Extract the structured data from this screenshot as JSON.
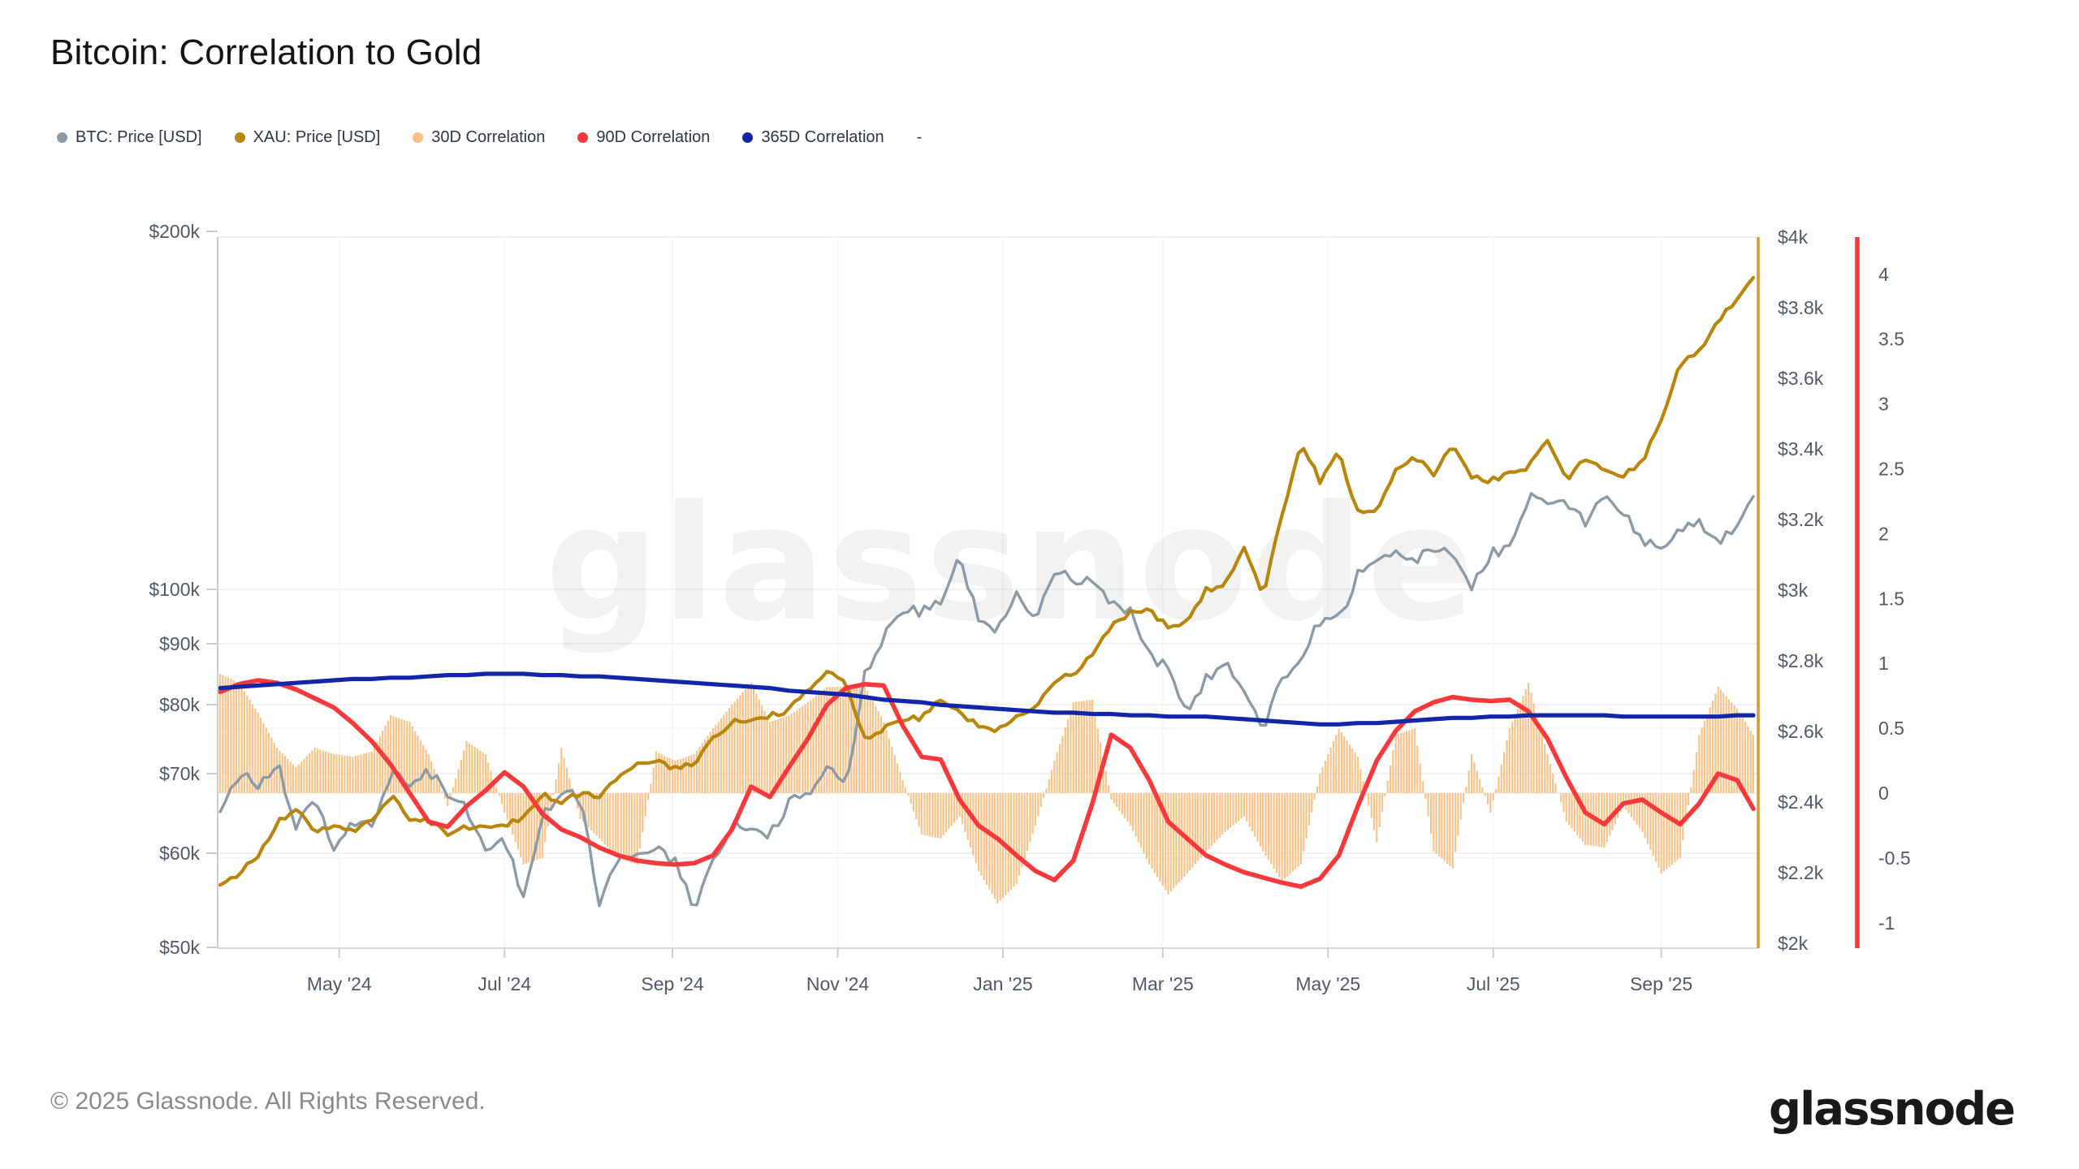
{
  "page": {
    "title": "Bitcoin: Correlation to Gold",
    "watermark": "glassnode",
    "footer": {
      "copyright": "© 2025 Glassnode. All Rights Reserved.",
      "brand": "glassnode"
    }
  },
  "legend": {
    "items": [
      {
        "label": "BTC: Price [USD]",
        "color": "#8A9AA7"
      },
      {
        "label": "XAU: Price [USD]",
        "color": "#B8860B"
      },
      {
        "label": "30D Correlation",
        "color": "#F9C083"
      },
      {
        "label": "90D Correlation",
        "color": "#F8393B"
      },
      {
        "label": "365D Correlation",
        "color": "#1226AA"
      }
    ],
    "overflow_label": "-"
  },
  "chart_data": {
    "type": "mixed",
    "title": "Bitcoin: Correlation to Gold",
    "grid": "horizontal-light",
    "legend_position": "top-left",
    "x_axis": {
      "start": "2024-03-18",
      "end": "2025-10-05",
      "tick_labels": [
        "May '24",
        "Jul '24",
        "Sep '24",
        "Nov '24",
        "Jan '25",
        "Mar '25",
        "May '25",
        "Jul '25",
        "Sep '25"
      ],
      "tick_dates": [
        "2024-05-01",
        "2024-07-01",
        "2024-09-01",
        "2024-11-01",
        "2025-01-01",
        "2025-03-01",
        "2025-05-01",
        "2025-07-01",
        "2025-09-01"
      ]
    },
    "axes": {
      "left_price": {
        "title": "BTC: Price [USD]",
        "scale": "log",
        "tick_labels": [
          "$200k",
          "$100k",
          "$90k",
          "$80k",
          "$70k",
          "$60k",
          "$50k"
        ],
        "tick_values_usd_k": [
          200,
          100,
          90,
          80,
          70,
          60,
          50
        ]
      },
      "right_price": {
        "title": "XAU: Price [USD]",
        "scale": "linear",
        "range_usd": [
          2000,
          4000
        ],
        "tick_labels": [
          "$4k",
          "$3.8k",
          "$3.6k",
          "$3.4k",
          "$3.2k",
          "$3k",
          "$2.8k",
          "$2.6k",
          "$2.4k",
          "$2.2k",
          "$2k"
        ],
        "tick_values_usd": [
          4000,
          3800,
          3600,
          3400,
          3200,
          3000,
          2800,
          2600,
          2400,
          2200,
          2000
        ],
        "axis_line_color": "#D9992E"
      },
      "right_correlation": {
        "title": "Correlation",
        "scale": "linear",
        "range": [
          -1.19,
          4.29
        ],
        "tick_labels": [
          "4",
          "3.5",
          "3",
          "2.5",
          "2",
          "1.5",
          "1",
          "0.5",
          "0",
          "-0.5",
          "-1"
        ],
        "tick_values": [
          4,
          3.5,
          3,
          2.5,
          2,
          1.5,
          1,
          0.5,
          0,
          -0.5,
          -1
        ],
        "axis_line_color": "#F8393B"
      }
    },
    "dates": [
      "2024-03-18",
      "2024-03-25",
      "2024-04-01",
      "2024-04-08",
      "2024-04-15",
      "2024-04-22",
      "2024-04-29",
      "2024-05-06",
      "2024-05-13",
      "2024-05-20",
      "2024-05-27",
      "2024-06-03",
      "2024-06-10",
      "2024-06-17",
      "2024-06-24",
      "2024-07-01",
      "2024-07-08",
      "2024-07-15",
      "2024-07-22",
      "2024-07-29",
      "2024-08-05",
      "2024-08-12",
      "2024-08-19",
      "2024-08-26",
      "2024-09-02",
      "2024-09-09",
      "2024-09-16",
      "2024-09-23",
      "2024-09-30",
      "2024-10-07",
      "2024-10-14",
      "2024-10-21",
      "2024-10-28",
      "2024-11-04",
      "2024-11-11",
      "2024-11-18",
      "2024-11-25",
      "2024-12-02",
      "2024-12-09",
      "2024-12-16",
      "2024-12-23",
      "2024-12-30",
      "2025-01-06",
      "2025-01-13",
      "2025-01-20",
      "2025-01-27",
      "2025-02-03",
      "2025-02-10",
      "2025-02-17",
      "2025-02-24",
      "2025-03-03",
      "2025-03-10",
      "2025-03-17",
      "2025-03-24",
      "2025-03-31",
      "2025-04-07",
      "2025-04-14",
      "2025-04-21",
      "2025-04-28",
      "2025-05-05",
      "2025-05-12",
      "2025-05-19",
      "2025-05-26",
      "2025-06-02",
      "2025-06-09",
      "2025-06-16",
      "2025-06-23",
      "2025-06-30",
      "2025-07-07",
      "2025-07-14",
      "2025-07-21",
      "2025-07-28",
      "2025-08-04",
      "2025-08-11",
      "2025-08-18",
      "2025-08-25",
      "2025-09-01",
      "2025-09-08",
      "2025-09-15",
      "2025-09-22",
      "2025-09-29",
      "2025-10-05"
    ],
    "series": [
      {
        "name": "BTC: Price [USD]",
        "type": "line",
        "axis": "left_price",
        "color": "#8A9AA7",
        "unit": "USD thousands",
        "values": [
          65.0,
          69.9,
          68.5,
          71.6,
          63.4,
          66.8,
          60.5,
          64.0,
          62.9,
          70.2,
          68.4,
          70.5,
          67.3,
          65.5,
          60.3,
          61.5,
          55.2,
          64.8,
          67.6,
          66.8,
          54.0,
          59.4,
          59.5,
          60.5,
          59.0,
          54.0,
          59.0,
          63.3,
          63.2,
          62.2,
          66.1,
          67.4,
          71.5,
          68.0,
          85.0,
          91.5,
          95.5,
          96.0,
          97.4,
          106.1,
          94.3,
          92.6,
          99.0,
          94.5,
          104.0,
          102.1,
          101.3,
          97.4,
          95.7,
          88.0,
          86.0,
          78.5,
          84.0,
          87.5,
          82.5,
          76.3,
          84.5,
          87.5,
          94.2,
          94.2,
          102.8,
          106.8,
          107.5,
          105.9,
          108.5,
          106.8,
          100.2,
          107.2,
          108.2,
          119.8,
          117.4,
          118.0,
          114.1,
          121.0,
          116.2,
          110.1,
          107.3,
          112.0,
          114.5,
          109.0,
          114.0,
          119.7
        ]
      },
      {
        "name": "XAU: Price [USD]",
        "type": "line",
        "axis": "right_price",
        "color": "#B8860B",
        "unit": "USD",
        "values": [
          2165,
          2195,
          2250,
          2340,
          2385,
          2315,
          2335,
          2320,
          2345,
          2420,
          2350,
          2350,
          2310,
          2330,
          2330,
          2330,
          2360,
          2425,
          2400,
          2425,
          2410,
          2470,
          2505,
          2515,
          2495,
          2510,
          2580,
          2625,
          2635,
          2645,
          2660,
          2720,
          2775,
          2735,
          2580,
          2610,
          2630,
          2640,
          2690,
          2650,
          2615,
          2605,
          2640,
          2670,
          2745,
          2765,
          2815,
          2900,
          2935,
          2945,
          2895,
          2910,
          3000,
          3020,
          3125,
          2985,
          3215,
          3420,
          3310,
          3390,
          3220,
          3230,
          3340,
          3380,
          3330,
          3410,
          3320,
          3310,
          3330,
          3350,
          3420,
          3310,
          3375,
          3345,
          3325,
          3365,
          3475,
          3640,
          3680,
          3760,
          3830,
          3885
        ]
      },
      {
        "name": "30D Correlation",
        "type": "bar",
        "axis": "right_correlation",
        "color": "#F9C083",
        "values": [
          0.92,
          0.85,
          0.62,
          0.35,
          0.2,
          0.35,
          0.3,
          0.28,
          0.32,
          0.6,
          0.55,
          0.3,
          -0.1,
          0.4,
          0.3,
          -0.15,
          -0.55,
          -0.5,
          0.35,
          -0.2,
          -0.35,
          -0.5,
          -0.55,
          0.32,
          0.25,
          0.3,
          0.5,
          0.68,
          0.85,
          0.55,
          0.6,
          0.7,
          0.82,
          0.82,
          0.83,
          0.55,
          0.1,
          -0.32,
          -0.35,
          -0.18,
          -0.6,
          -0.85,
          -0.7,
          -0.25,
          0.25,
          0.7,
          0.72,
          -0.05,
          -0.25,
          -0.55,
          -0.78,
          -0.62,
          -0.45,
          -0.3,
          -0.18,
          -0.45,
          -0.68,
          -0.55,
          0.15,
          0.5,
          0.28,
          -0.38,
          0.45,
          0.5,
          -0.45,
          -0.58,
          0.3,
          -0.15,
          0.5,
          0.85,
          0.3,
          -0.22,
          -0.4,
          -0.42,
          -0.1,
          -0.3,
          -0.62,
          -0.5,
          0.45,
          0.82,
          0.65,
          0.45
        ]
      },
      {
        "name": "90D Correlation",
        "type": "line",
        "axis": "right_correlation",
        "color": "#F8393B",
        "values": [
          0.78,
          0.84,
          0.87,
          0.85,
          0.8,
          0.73,
          0.66,
          0.54,
          0.4,
          0.22,
          0.0,
          -0.22,
          -0.26,
          -0.1,
          0.02,
          0.16,
          0.05,
          -0.16,
          -0.28,
          -0.34,
          -0.42,
          -0.48,
          -0.52,
          -0.54,
          -0.55,
          -0.54,
          -0.48,
          -0.28,
          0.05,
          -0.03,
          0.2,
          0.42,
          0.68,
          0.81,
          0.84,
          0.83,
          0.52,
          0.28,
          0.26,
          -0.05,
          -0.25,
          -0.35,
          -0.48,
          -0.6,
          -0.67,
          -0.52,
          -0.08,
          0.45,
          0.35,
          0.1,
          -0.22,
          -0.35,
          -0.48,
          -0.55,
          -0.61,
          -0.65,
          -0.69,
          -0.72,
          -0.66,
          -0.48,
          -0.1,
          0.25,
          0.48,
          0.63,
          0.7,
          0.74,
          0.72,
          0.71,
          0.72,
          0.63,
          0.42,
          0.12,
          -0.15,
          -0.24,
          -0.08,
          -0.05,
          -0.15,
          -0.24,
          -0.08,
          0.15,
          0.1,
          -0.12
        ]
      },
      {
        "name": "365D Correlation",
        "type": "line",
        "axis": "right_correlation",
        "color": "#1226AA",
        "values": [
          0.81,
          0.82,
          0.83,
          0.84,
          0.85,
          0.86,
          0.87,
          0.88,
          0.88,
          0.89,
          0.89,
          0.9,
          0.91,
          0.91,
          0.92,
          0.92,
          0.92,
          0.91,
          0.91,
          0.9,
          0.9,
          0.89,
          0.88,
          0.87,
          0.86,
          0.85,
          0.84,
          0.83,
          0.82,
          0.81,
          0.79,
          0.78,
          0.77,
          0.76,
          0.74,
          0.72,
          0.71,
          0.7,
          0.68,
          0.67,
          0.66,
          0.65,
          0.64,
          0.63,
          0.62,
          0.62,
          0.61,
          0.61,
          0.6,
          0.6,
          0.59,
          0.59,
          0.59,
          0.58,
          0.57,
          0.56,
          0.55,
          0.54,
          0.53,
          0.53,
          0.54,
          0.54,
          0.55,
          0.56,
          0.57,
          0.58,
          0.58,
          0.59,
          0.59,
          0.6,
          0.6,
          0.6,
          0.6,
          0.6,
          0.59,
          0.59,
          0.59,
          0.59,
          0.59,
          0.59,
          0.6,
          0.6
        ]
      }
    ]
  }
}
